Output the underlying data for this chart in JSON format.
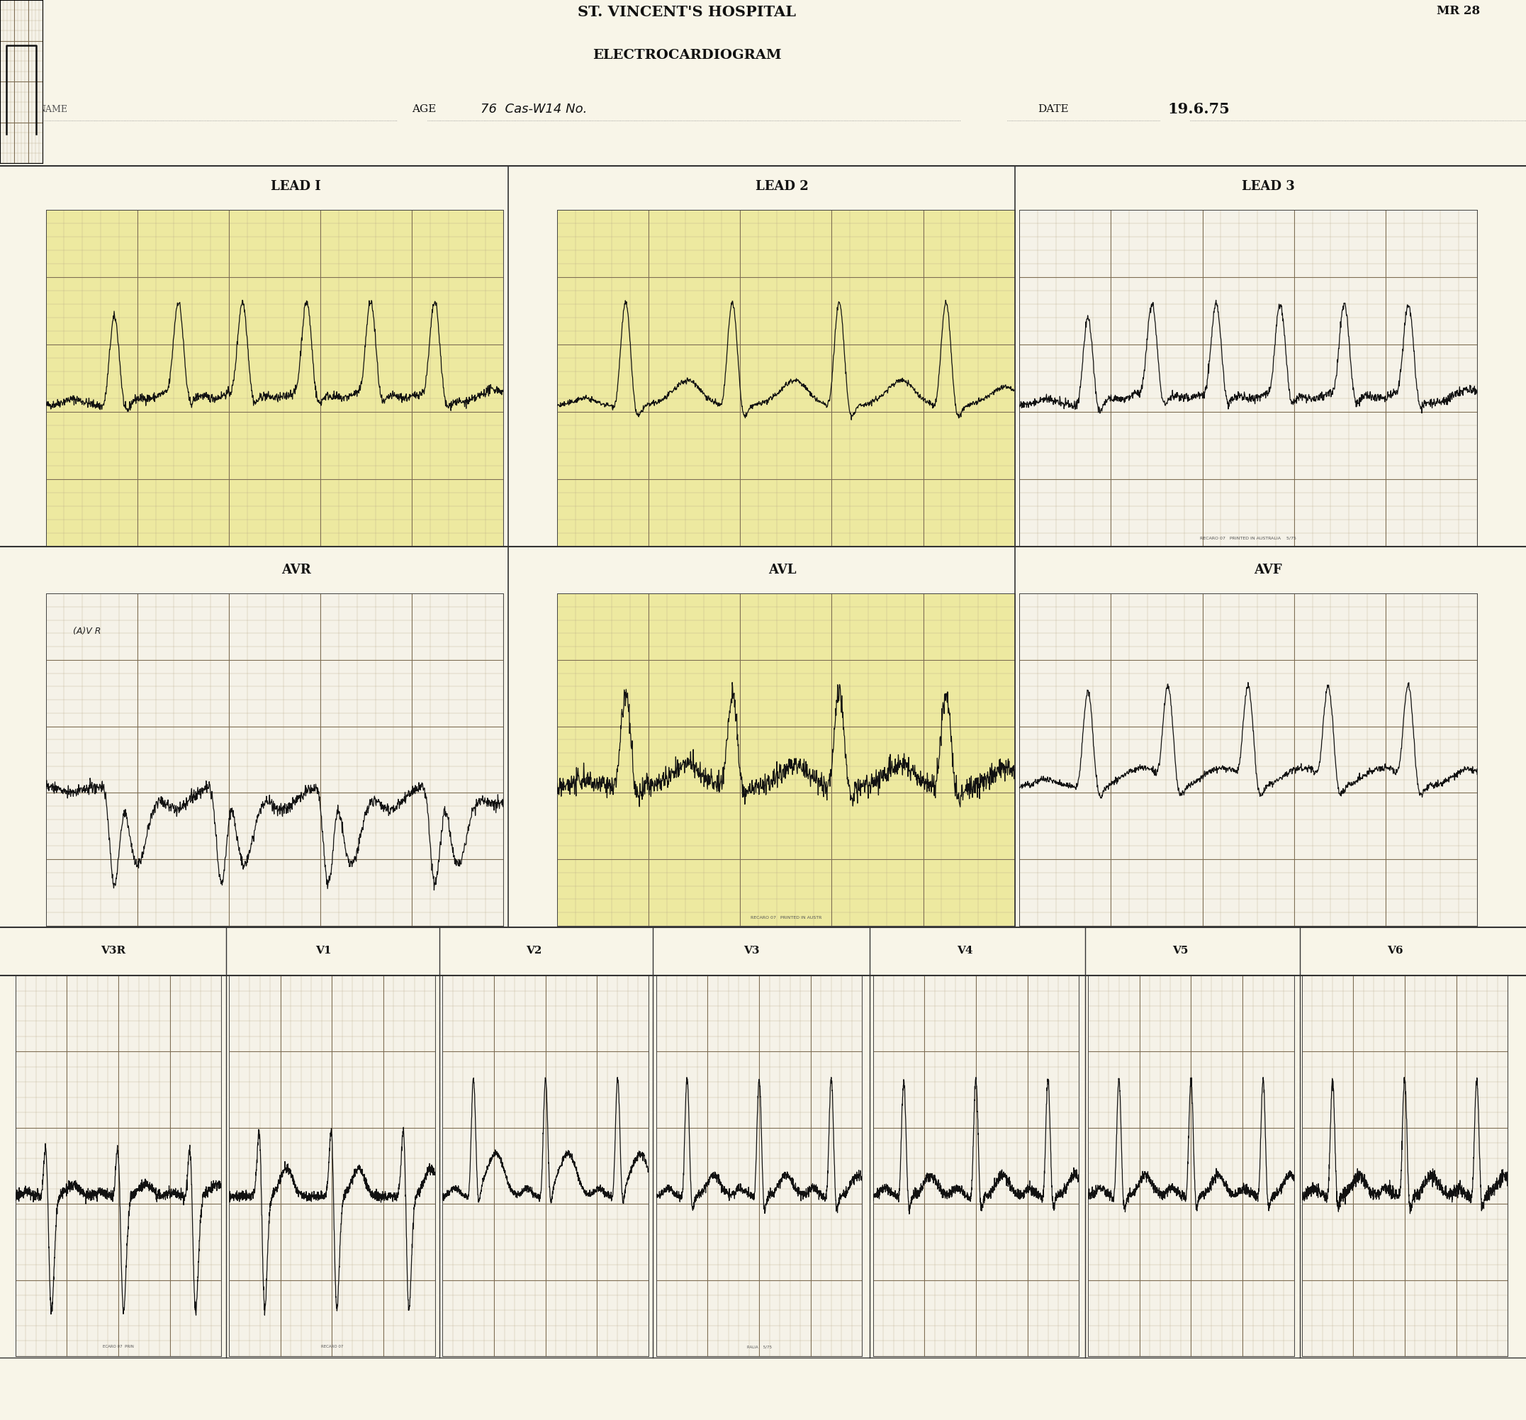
{
  "title_line1": "ST. VINCENT'S HOSPITAL",
  "title_line2": "ELECTROCARDIOGRAM",
  "mr_label": "MR 28",
  "age_label": "AGE",
  "age_value": "76  Cas-W14 No.",
  "date_label": "DATE",
  "date_value": "19.6.75",
  "lead_labels_row1": [
    "LEAD I",
    "LEAD 2",
    "LEAD 3"
  ],
  "lead_labels_row2": [
    "AVR",
    "AVL",
    "AVF"
  ],
  "lead_labels_row3": [
    "V3R",
    "V1",
    "V2",
    "V3",
    "V4",
    "V5",
    "V6"
  ],
  "bg_color": "#f5f2e8",
  "grid_major_color": "#7a6a50",
  "grid_minor_color": "#b8a888",
  "ecg_color": "#111111",
  "highlight_color": "#ede9a0",
  "paper_color": "#f8f5e8"
}
